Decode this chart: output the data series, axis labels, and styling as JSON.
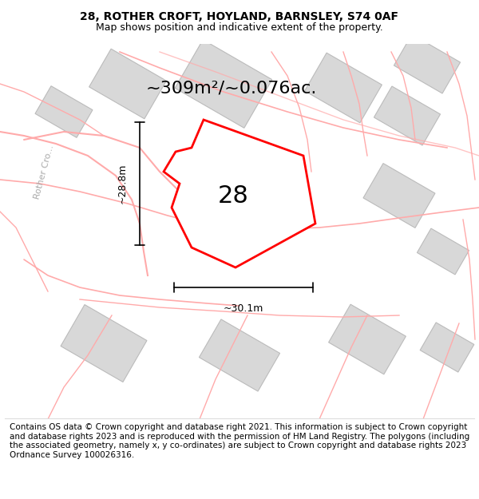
{
  "title": "28, ROTHER CROFT, HOYLAND, BARNSLEY, S74 0AF",
  "subtitle": "Map shows position and indicative extent of the property.",
  "area_text": "~309m²/~0.076ac.",
  "plot_number": "28",
  "dim_width": "~30.1m",
  "dim_height": "~28.8m",
  "road_label": "Rother Cro...",
  "footer": "Contains OS data © Crown copyright and database right 2021. This information is subject to Crown copyright and database rights 2023 and is reproduced with the permission of HM Land Registry. The polygons (including the associated geometry, namely x, y co-ordinates) are subject to Crown copyright and database rights 2023 Ordnance Survey 100026316.",
  "bg_color": "#ffffff",
  "map_bg": "#f5f0f0",
  "plot_color": "#ff0000",
  "plot_fill": "#ffffff",
  "building_color": "#cccccc",
  "road_line_color": "#ffaaaa",
  "title_fontsize": 10,
  "subtitle_fontsize": 9,
  "footer_fontsize": 7.5,
  "figsize": [
    6.0,
    6.25
  ],
  "dpi": 100
}
